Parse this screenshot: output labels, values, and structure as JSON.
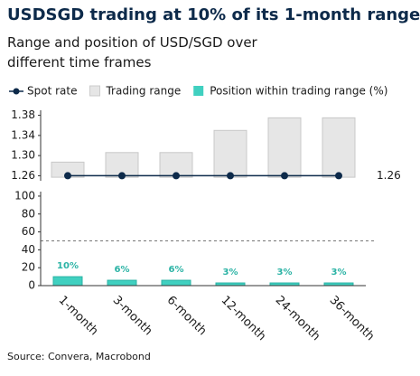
{
  "title": "USDSGD trading at 10% of its 1-month range",
  "subtitle": "Range and position of USD/SGD over different time frames",
  "source": "Source: Convera, Macrobond",
  "chart_data": [
    {
      "type": "range",
      "ylim": [
        1.25,
        1.39
      ],
      "yticks": [
        1.26,
        {
          "value": 1.3,
          "label": "1.30"
        },
        1.34,
        1.38
      ],
      "series": [
        {
          "name": "Spot rate",
          "type": "line",
          "color": "#0d2a4a",
          "values": [
            1.26,
            1.26,
            1.26,
            1.26,
            1.26,
            1.26
          ]
        },
        {
          "name": "Trading range",
          "type": "range",
          "color": "#e6e6e6",
          "low": [
            1.257,
            1.257,
            1.257,
            1.257,
            1.257,
            1.257
          ],
          "high": [
            1.287,
            1.306,
            1.306,
            1.35,
            1.375,
            1.375
          ]
        }
      ]
    },
    {
      "type": "bar",
      "categories": [
        "1-month",
        "3-month",
        "6-month",
        "12-month",
        "24-month",
        "36-month"
      ],
      "ylim": [
        0,
        105
      ],
      "yticks": [
        0,
        20,
        40,
        60,
        80,
        100
      ],
      "hline": 50,
      "series": [
        {
          "name": "Position within trading range (%)",
          "color": "#40d0c0",
          "values": [
            10,
            6,
            6,
            3,
            3,
            3
          ],
          "value_labels": [
            "10%",
            "6%",
            "6%",
            "3%",
            "3%",
            "3%"
          ]
        }
      ]
    }
  ]
}
